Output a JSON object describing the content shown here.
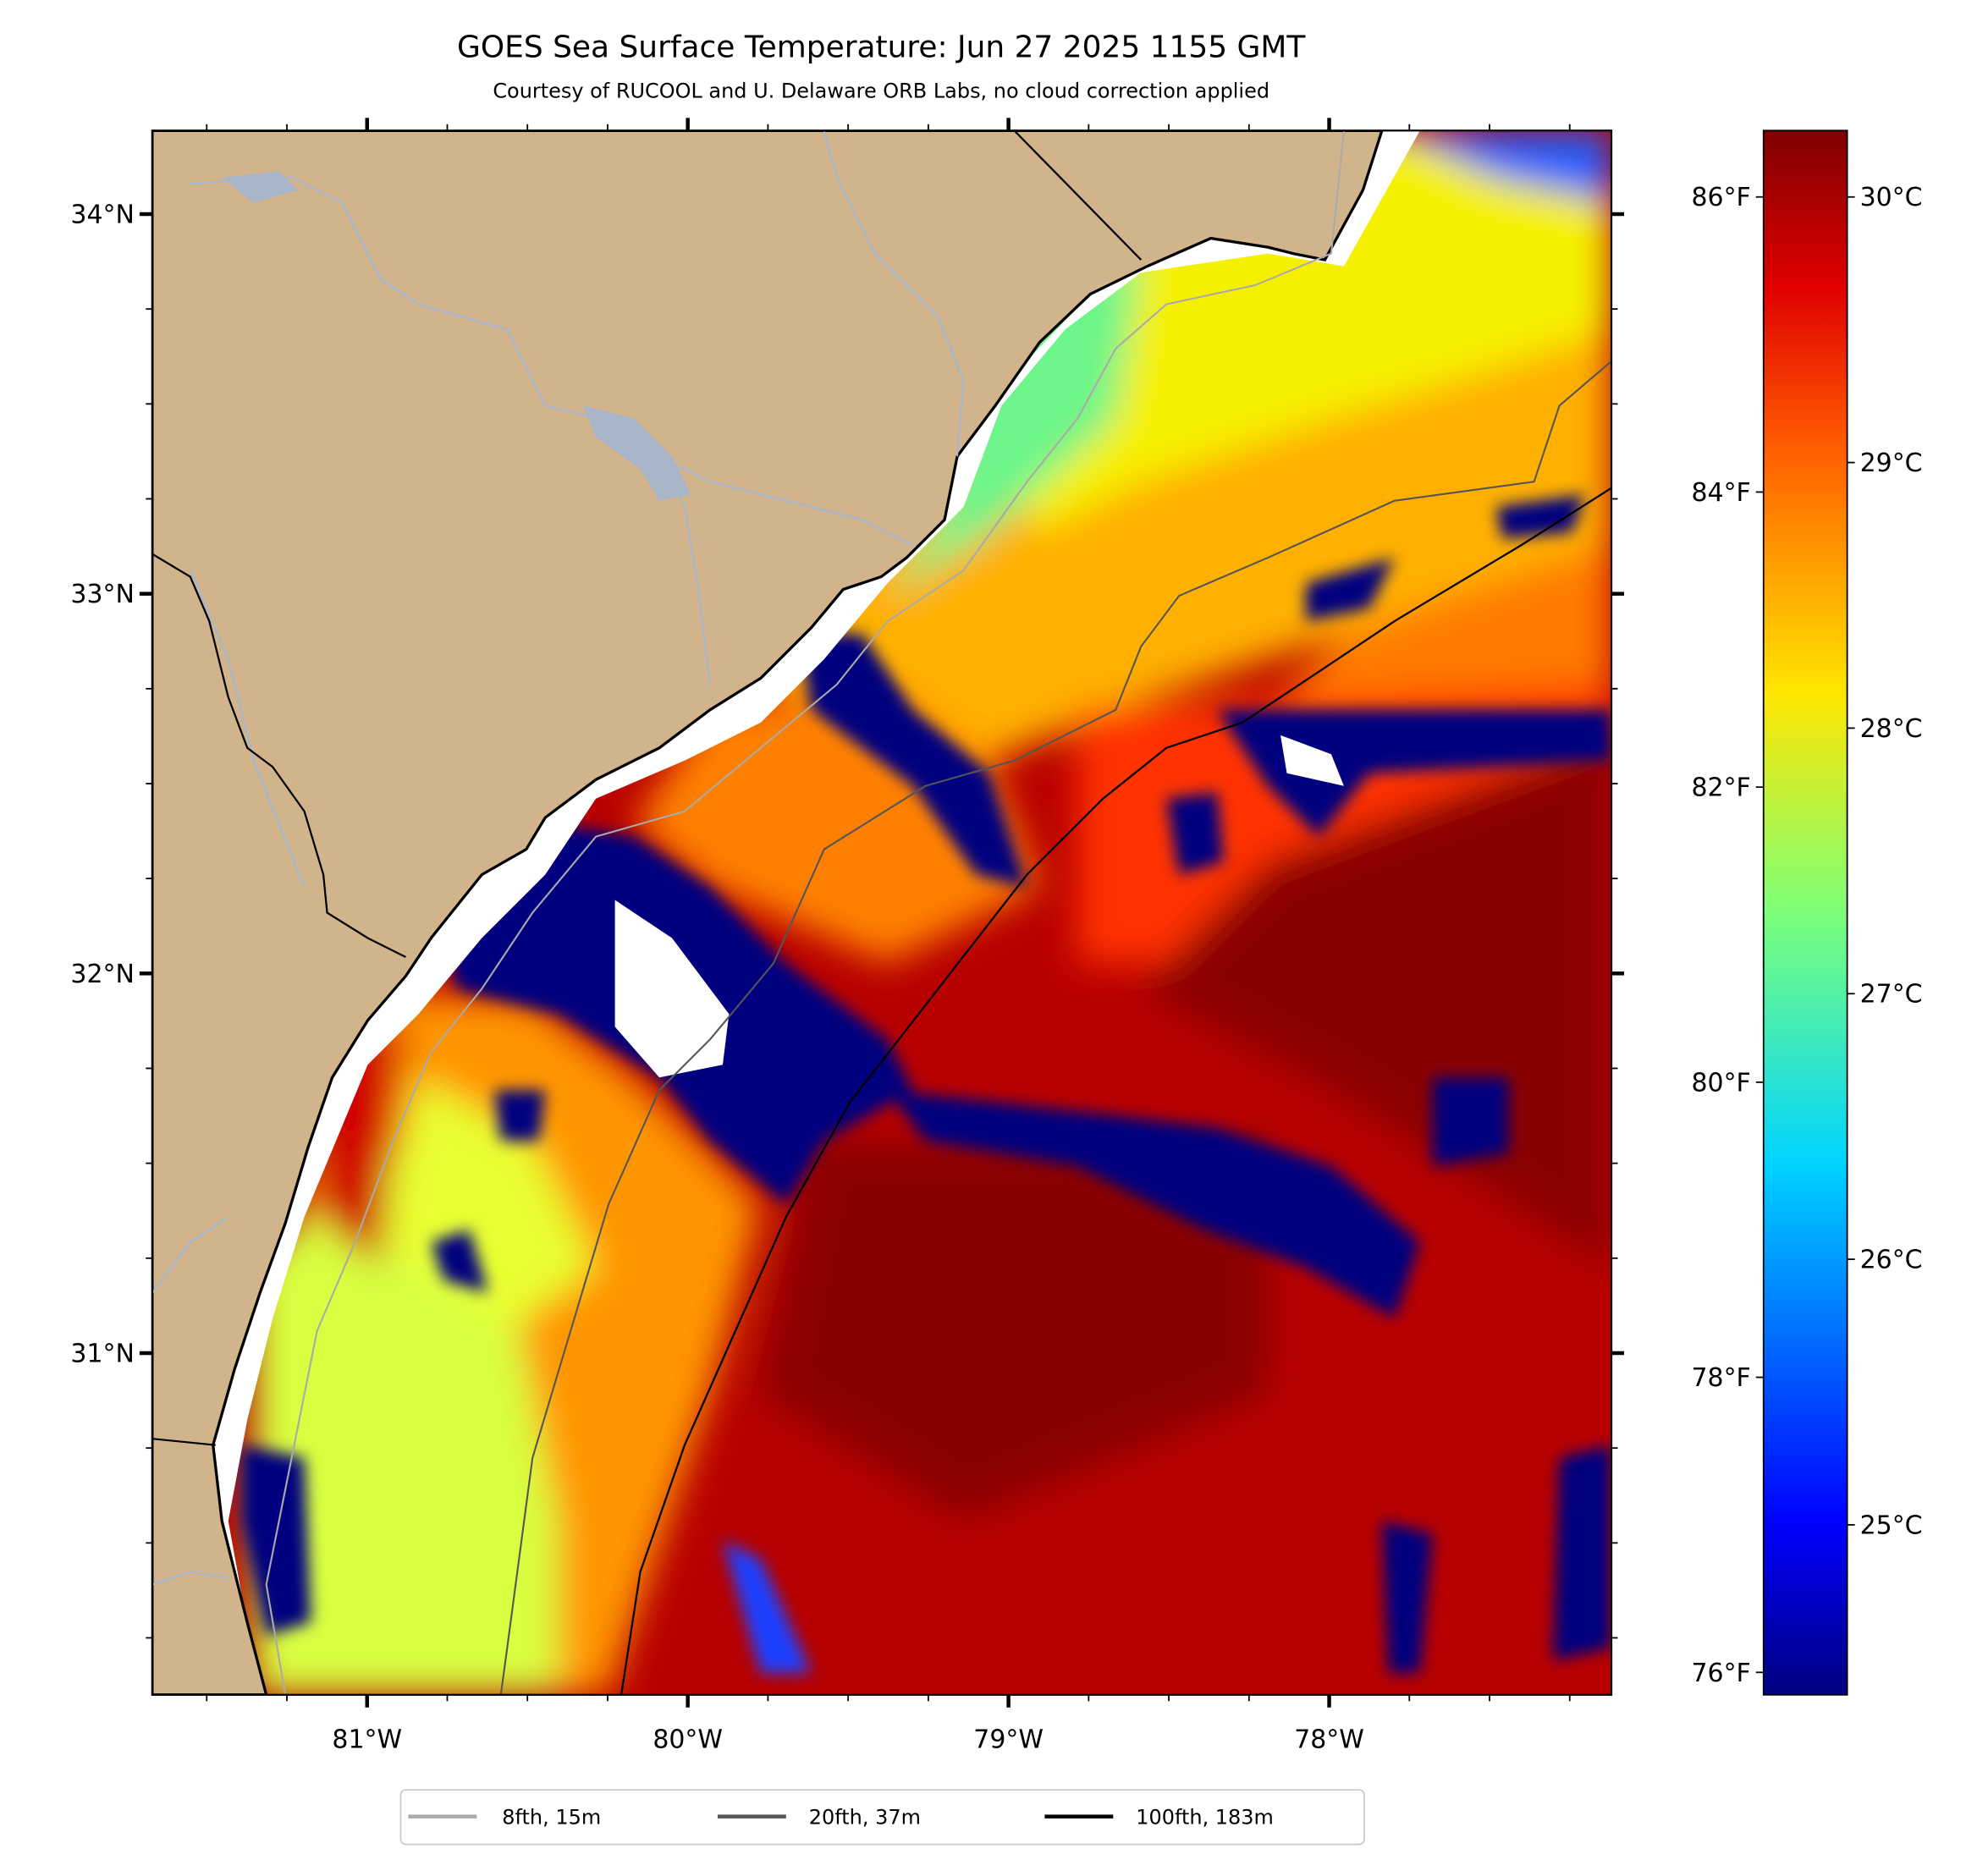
{
  "chart_data": {
    "type": "heatmap",
    "title": "GOES Sea Surface Temperature: Jun 27 2025 1155 GMT",
    "subtitle": "Courtesy of RUCOOL and U. Delaware ORB Labs, no cloud correction applied",
    "xlim": [
      -81.67,
      -77.12
    ],
    "ylim": [
      30.1,
      34.22
    ],
    "x_ticks": [
      {
        "value": -81,
        "label": "81°W"
      },
      {
        "value": -80,
        "label": "80°W"
      },
      {
        "value": -79,
        "label": "79°W"
      },
      {
        "value": -78,
        "label": "78°W"
      }
    ],
    "y_ticks": [
      {
        "value": 34,
        "label": "34°N"
      },
      {
        "value": 33,
        "label": "33°N"
      },
      {
        "value": 32,
        "label": "32°N"
      },
      {
        "value": 31,
        "label": "31°N"
      }
    ],
    "minor_tick_step_deg": 0.25,
    "colorbar": {
      "colormap": "jet",
      "range_c": [
        24.36,
        30.25
      ],
      "ticks_c": [
        {
          "value": 30,
          "label": "30°C"
        },
        {
          "value": 29,
          "label": "29°C"
        },
        {
          "value": 28,
          "label": "28°C"
        },
        {
          "value": 27,
          "label": "27°C"
        },
        {
          "value": 26,
          "label": "26°C"
        },
        {
          "value": 25,
          "label": "25°C"
        }
      ],
      "ticks_f": [
        {
          "value": 86,
          "label": "86°F"
        },
        {
          "value": 84,
          "label": "84°F"
        },
        {
          "value": 82,
          "label": "82°F"
        },
        {
          "value": 80,
          "label": "80°F"
        },
        {
          "value": 78,
          "label": "78°F"
        },
        {
          "value": 76,
          "label": "76°F"
        }
      ]
    },
    "legend": {
      "placement": "bottom-center",
      "entries": [
        {
          "label": "8fth, 15m",
          "color": "#aaaaaa"
        },
        {
          "label": "20fth, 37m",
          "color": "#555555"
        },
        {
          "label": "100fth, 183m",
          "color": "#000000"
        }
      ]
    },
    "colors": {
      "land": "#d2b48c",
      "river": "#9fb8d8",
      "no_data": "#ffffff"
    }
  }
}
